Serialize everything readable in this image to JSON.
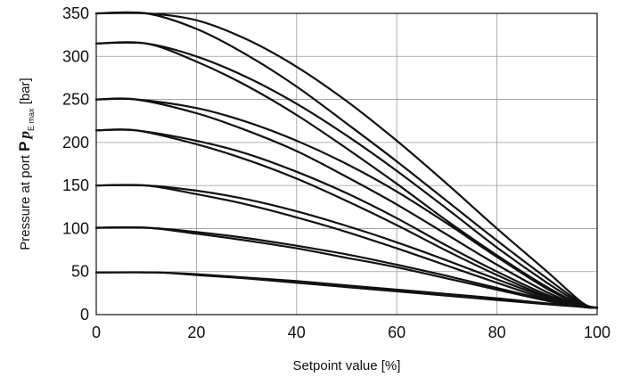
{
  "chart_data": {
    "type": "line",
    "title": "",
    "xlabel": "Setpoint value [%]",
    "ylabel": {
      "prefix": "Pressure at port ",
      "port": "P",
      "symbol": "p",
      "subscript": "E max",
      "unit": " [bar]"
    },
    "xlim": [
      0,
      100
    ],
    "ylim": [
      0,
      350
    ],
    "x_ticks": [
      "0",
      "20",
      "40",
      "60",
      "80",
      "100"
    ],
    "y_ticks": [
      "0",
      "50",
      "100",
      "150",
      "200",
      "250",
      "300",
      "350"
    ],
    "grid": true,
    "legend": "none",
    "line_color": "#111111",
    "series": [
      {
        "x": [
          0,
          10,
          20,
          30,
          40,
          50,
          60,
          70,
          80,
          90,
          97,
          100
        ],
        "y": [
          350,
          350,
          342,
          320,
          288,
          248,
          202,
          152,
          100,
          50,
          14,
          8
        ]
      },
      {
        "x": [
          0,
          10,
          20,
          30,
          40,
          50,
          60,
          70,
          80,
          90,
          97,
          100
        ],
        "y": [
          350,
          350,
          332,
          302,
          265,
          222,
          178,
          132,
          86,
          42,
          13,
          8
        ]
      },
      {
        "x": [
          0,
          10,
          20,
          30,
          40,
          50,
          60,
          70,
          80,
          90,
          97,
          100
        ],
        "y": [
          315,
          315,
          300,
          276,
          245,
          208,
          167,
          123,
          78,
          37,
          12,
          8
        ]
      },
      {
        "x": [
          0,
          10,
          20,
          30,
          40,
          50,
          60,
          70,
          80,
          90,
          97,
          100
        ],
        "y": [
          315,
          315,
          294,
          266,
          232,
          193,
          152,
          109,
          69,
          32,
          11,
          8
        ]
      },
      {
        "x": [
          0,
          8,
          20,
          30,
          40,
          50,
          60,
          70,
          80,
          90,
          97,
          100
        ],
        "y": [
          250,
          250,
          240,
          224,
          202,
          175,
          143,
          106,
          67,
          30,
          11,
          8
        ]
      },
      {
        "x": [
          0,
          8,
          20,
          30,
          40,
          50,
          60,
          70,
          80,
          90,
          97,
          100
        ],
        "y": [
          250,
          250,
          234,
          214,
          190,
          160,
          128,
          93,
          58,
          26,
          10,
          8
        ]
      },
      {
        "x": [
          0,
          8,
          20,
          30,
          40,
          50,
          60,
          70,
          80,
          90,
          97,
          100
        ],
        "y": [
          214,
          214,
          202,
          187,
          166,
          141,
          112,
          80,
          50,
          23,
          10,
          8
        ]
      },
      {
        "x": [
          0,
          8,
          20,
          30,
          40,
          50,
          60,
          70,
          80,
          90,
          97,
          100
        ],
        "y": [
          214,
          214,
          198,
          180,
          158,
          132,
          104,
          74,
          46,
          21,
          10,
          8
        ]
      },
      {
        "x": [
          0,
          10,
          20,
          30,
          40,
          50,
          60,
          70,
          80,
          90,
          97,
          100
        ],
        "y": [
          150,
          150,
          144,
          134,
          120,
          103,
          84,
          63,
          41,
          20,
          10,
          8
        ]
      },
      {
        "x": [
          0,
          10,
          20,
          30,
          40,
          50,
          60,
          70,
          80,
          90,
          97,
          100
        ],
        "y": [
          150,
          150,
          140,
          128,
          113,
          96,
          77,
          57,
          37,
          18,
          9,
          8
        ]
      },
      {
        "x": [
          0,
          10,
          20,
          30,
          40,
          50,
          60,
          70,
          80,
          90,
          97,
          100
        ],
        "y": [
          101,
          101,
          96,
          89,
          80,
          70,
          58,
          45,
          31,
          17,
          9,
          8
        ]
      },
      {
        "x": [
          0,
          10,
          20,
          30,
          40,
          50,
          60,
          70,
          80,
          90,
          97,
          100
        ],
        "y": [
          101,
          101,
          94,
          86,
          77,
          66,
          55,
          42,
          29,
          16,
          9,
          8
        ]
      },
      {
        "x": [
          0,
          12,
          20,
          30,
          40,
          50,
          60,
          70,
          80,
          90,
          97,
          100
        ],
        "y": [
          49,
          49,
          47,
          43,
          39,
          34,
          29,
          24,
          19,
          13,
          9,
          8
        ]
      },
      {
        "x": [
          0,
          12,
          20,
          30,
          40,
          50,
          60,
          70,
          80,
          90,
          97,
          100
        ],
        "y": [
          49,
          49,
          46,
          42,
          37,
          32,
          27,
          22,
          17,
          12,
          9,
          8
        ]
      }
    ]
  }
}
